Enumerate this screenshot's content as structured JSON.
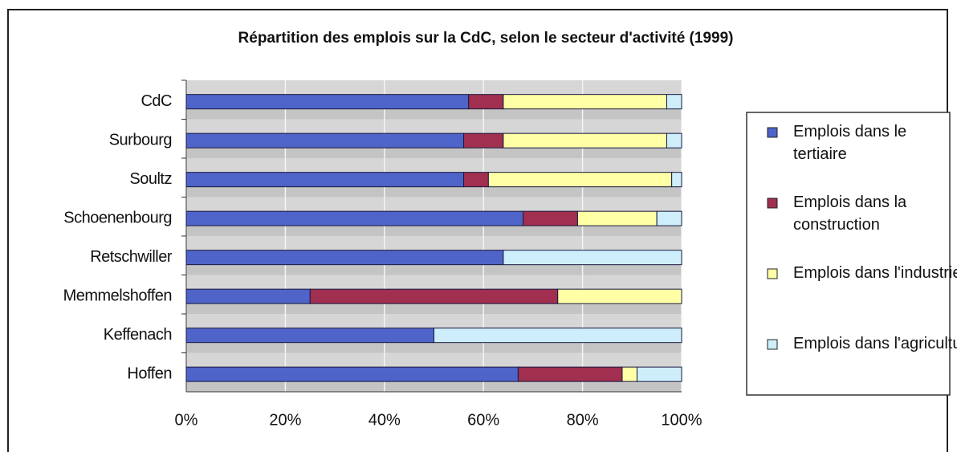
{
  "chart_data": {
    "type": "stacked-barh",
    "title": "Répartition des emplois sur la CdC, selon le secteur d'activité (1999)",
    "categories": [
      "CdC",
      "Surbourg",
      "Soultz",
      "Schoenenbourg",
      "Retschwiller",
      "Memmelshoffen",
      "Keffenach",
      "Hoffen"
    ],
    "series": [
      {
        "name": "Emplois dans le tertiaire",
        "color": "#4f64c8",
        "values": [
          57,
          56,
          56,
          68,
          64,
          25,
          50,
          67
        ]
      },
      {
        "name": "Emplois dans la construction",
        "color": "#a12f50",
        "values": [
          7,
          8,
          5,
          11,
          0,
          50,
          0,
          21
        ]
      },
      {
        "name": "Emplois dans l'industrie",
        "color": "#ffffa6",
        "values": [
          33,
          33,
          37,
          16,
          0,
          25,
          0,
          3
        ]
      },
      {
        "name": "Emplois dans l'agriculture",
        "color": "#cdeefa",
        "values": [
          3,
          3,
          2,
          5,
          36,
          0,
          50,
          9
        ]
      }
    ],
    "xlim": [
      0,
      100
    ],
    "xticks": [
      {
        "value": 0,
        "label": "0%"
      },
      {
        "value": 20,
        "label": "20%"
      },
      {
        "value": 40,
        "label": "40%"
      },
      {
        "value": 60,
        "label": "60%"
      },
      {
        "value": 80,
        "label": "80%"
      },
      {
        "value": 100,
        "label": "100%"
      }
    ],
    "grid": true,
    "legend": "right"
  }
}
